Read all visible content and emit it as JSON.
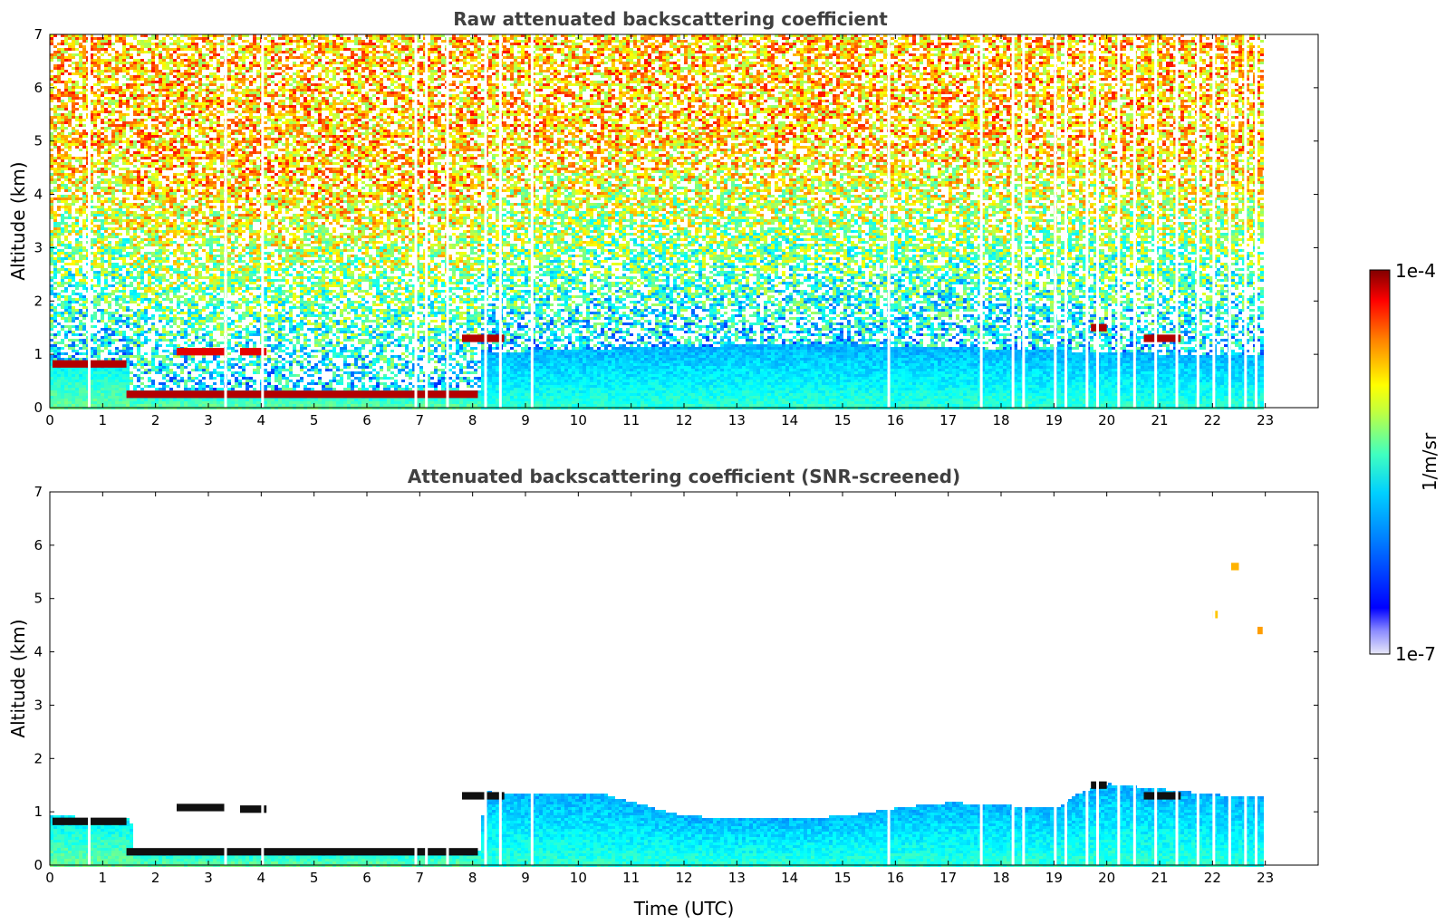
{
  "chart_data": [
    {
      "type": "heatmap",
      "title": "Raw attenuated backscattering coefficient",
      "xlabel": "",
      "ylabel": "Altitude (km)",
      "xlim": [
        0,
        24
      ],
      "ylim": [
        0,
        7
      ],
      "x_ticks": [
        "0",
        "1",
        "2",
        "3",
        "4",
        "5",
        "6",
        "7",
        "8",
        "9",
        "10",
        "11",
        "12",
        "13",
        "14",
        "15",
        "16",
        "17",
        "18",
        "19",
        "20",
        "21",
        "22",
        "23"
      ],
      "y_ticks": [
        "0",
        "1",
        "2",
        "3",
        "4",
        "5",
        "6",
        "7"
      ],
      "data_end_time": 22.95,
      "layers": [
        {
          "name": "cloud-layer",
          "t_start": 0.05,
          "t_end": 1.45,
          "altitude_km": 0.82,
          "level": 0.95
        },
        {
          "name": "cloud-layer",
          "t_start": 1.45,
          "t_end": 8.1,
          "altitude_km": 0.25,
          "level": 0.95
        },
        {
          "name": "cloud-layer",
          "t_start": 2.4,
          "t_end": 3.3,
          "altitude_km": 1.05,
          "level": 0.9
        },
        {
          "name": "cloud-layer",
          "t_start": 3.6,
          "t_end": 4.1,
          "altitude_km": 1.05,
          "level": 0.9
        },
        {
          "name": "cloud-layer",
          "t_start": 7.8,
          "t_end": 8.6,
          "altitude_km": 1.3,
          "level": 0.95
        },
        {
          "name": "cloud-layer",
          "t_start": 19.7,
          "t_end": 20.0,
          "altitude_km": 1.5,
          "level": 0.95
        },
        {
          "name": "cloud-layer",
          "t_start": 20.7,
          "t_end": 21.4,
          "altitude_km": 1.3,
          "level": 0.95
        },
        {
          "name": "cloud-layer",
          "t_start": 22.8,
          "t_end": 22.95,
          "altitude_km": 4.4,
          "level": 0.75
        }
      ],
      "data_gaps": [
        0.72,
        3.3,
        4.0,
        6.9,
        7.1,
        7.5,
        8.22,
        8.5,
        9.1,
        15.85,
        17.6,
        18.2,
        18.4,
        19.0,
        19.2,
        19.6,
        19.8,
        20.2,
        20.5,
        20.9,
        21.3,
        21.7,
        22.0,
        22.3,
        22.6,
        22.8
      ]
    },
    {
      "type": "heatmap",
      "title": "Attenuated backscattering coefficient (SNR-screened)",
      "xlabel": "Time (UTC)",
      "ylabel": "Altitude (km)",
      "xlim": [
        0,
        24
      ],
      "ylim": [
        0,
        7
      ],
      "x_ticks": [
        "0",
        "1",
        "2",
        "3",
        "4",
        "5",
        "6",
        "7",
        "8",
        "9",
        "10",
        "11",
        "12",
        "13",
        "14",
        "15",
        "16",
        "17",
        "18",
        "19",
        "20",
        "21",
        "22",
        "23"
      ],
      "y_ticks": [
        "0",
        "1",
        "2",
        "3",
        "4",
        "5",
        "6",
        "7"
      ],
      "data_end_time": 22.95,
      "boundary_layer_top_km": [
        {
          "t": 0.0,
          "h": 0.95
        },
        {
          "t": 1.5,
          "h": 0.9
        },
        {
          "t": 1.55,
          "h": 0.3
        },
        {
          "t": 8.1,
          "h": 0.3
        },
        {
          "t": 8.2,
          "h": 1.4
        },
        {
          "t": 9.0,
          "h": 1.35
        },
        {
          "t": 10.5,
          "h": 1.35
        },
        {
          "t": 11.0,
          "h": 1.2
        },
        {
          "t": 12.0,
          "h": 0.95
        },
        {
          "t": 13.0,
          "h": 0.9
        },
        {
          "t": 14.0,
          "h": 0.9
        },
        {
          "t": 15.0,
          "h": 0.95
        },
        {
          "t": 16.0,
          "h": 1.1
        },
        {
          "t": 17.0,
          "h": 1.2
        },
        {
          "t": 18.0,
          "h": 1.15
        },
        {
          "t": 19.0,
          "h": 1.1
        },
        {
          "t": 19.5,
          "h": 1.4
        },
        {
          "t": 20.0,
          "h": 1.55
        },
        {
          "t": 21.0,
          "h": 1.45
        },
        {
          "t": 22.0,
          "h": 1.35
        },
        {
          "t": 22.95,
          "h": 1.3
        }
      ],
      "layers": [
        {
          "name": "cloud-layer",
          "t_start": 0.05,
          "t_end": 1.45,
          "altitude_km": 0.82,
          "level": 0.99
        },
        {
          "name": "cloud-layer",
          "t_start": 1.45,
          "t_end": 8.1,
          "altitude_km": 0.25,
          "level": 0.99
        },
        {
          "name": "cloud-layer",
          "t_start": 2.4,
          "t_end": 3.3,
          "altitude_km": 1.08,
          "level": 0.99
        },
        {
          "name": "cloud-layer",
          "t_start": 3.6,
          "t_end": 4.1,
          "altitude_km": 1.05,
          "level": 0.99
        },
        {
          "name": "cloud-layer",
          "t_start": 7.8,
          "t_end": 8.6,
          "altitude_km": 1.3,
          "level": 0.99
        },
        {
          "name": "cloud-layer",
          "t_start": 19.7,
          "t_end": 20.0,
          "altitude_km": 1.5,
          "level": 0.99
        },
        {
          "name": "cloud-layer",
          "t_start": 20.7,
          "t_end": 21.4,
          "altitude_km": 1.3,
          "level": 0.99
        },
        {
          "name": "cloud-layer",
          "t_start": 22.35,
          "t_end": 22.5,
          "altitude_km": 5.6,
          "level": 0.7
        },
        {
          "name": "cloud-layer",
          "t_start": 22.8,
          "t_end": 22.95,
          "altitude_km": 4.4,
          "level": 0.72
        },
        {
          "name": "cloud-layer",
          "t_start": 22.0,
          "t_end": 22.1,
          "altitude_km": 4.7,
          "level": 0.68
        }
      ],
      "data_gaps": [
        0.72,
        3.3,
        4.0,
        6.9,
        7.1,
        7.5,
        8.22,
        8.5,
        9.1,
        15.85,
        17.6,
        18.2,
        18.4,
        19.0,
        19.2,
        19.6,
        19.8,
        20.2,
        20.5,
        20.9,
        21.3,
        21.7,
        22.0,
        22.3,
        22.6,
        22.8
      ]
    }
  ],
  "colorbar": {
    "label": "1/m/sr",
    "max_label": "1e-4",
    "min_label": "1e-7",
    "colormap": "jet",
    "min_value": 1e-07,
    "max_value": 0.0001,
    "scale": "log"
  }
}
